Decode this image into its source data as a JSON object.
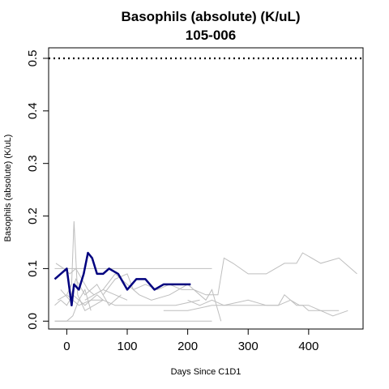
{
  "chart_data": {
    "type": "line",
    "title": "Basophils (absolute) (K/uL)",
    "subtitle": "105-006",
    "xlabel": "Days Since C1D1",
    "ylabel": "Basophils (absolute) (K/uL)",
    "xlim": [
      -30,
      490
    ],
    "ylim": [
      -0.015,
      0.52
    ],
    "xticks": [
      0,
      100,
      200,
      300,
      400
    ],
    "yticks": [
      0.0,
      0.1,
      0.2,
      0.3,
      0.4,
      0.5
    ],
    "xtick_labels": [
      "0",
      "100",
      "200",
      "300",
      "400"
    ],
    "ytick_labels": [
      "0.0",
      "0.1",
      "0.2",
      "0.3",
      "0.4",
      "0.5"
    ],
    "reference_line": {
      "y": 0.5,
      "style": "dotted"
    },
    "colors": {
      "highlight": "#00007f",
      "background_series": "#bebebe",
      "reference": "#000000"
    },
    "highlight_series": {
      "name": "105-006",
      "x": [
        -20,
        0,
        8,
        12,
        20,
        28,
        35,
        42,
        50,
        60,
        70,
        85,
        100,
        115,
        130,
        145,
        160,
        180,
        205
      ],
      "y": [
        0.08,
        0.1,
        0.03,
        0.07,
        0.06,
        0.09,
        0.13,
        0.12,
        0.09,
        0.09,
        0.1,
        0.09,
        0.06,
        0.08,
        0.08,
        0.06,
        0.07,
        0.07,
        0.07
      ]
    },
    "background_series": [
      {
        "x": [
          -20,
          -10,
          0,
          10,
          20,
          30,
          40,
          50,
          60
        ],
        "y": [
          0.03,
          0.04,
          0.03,
          0.05,
          0.04,
          0.03,
          0.04,
          0.05,
          0.04
        ]
      },
      {
        "x": [
          -18,
          -5,
          5,
          15,
          25,
          35,
          45,
          60,
          80,
          100
        ],
        "y": [
          0.11,
          0.1,
          0.09,
          0.1,
          0.08,
          0.06,
          0.05,
          0.06,
          0.05,
          0.04
        ]
      },
      {
        "x": [
          -15,
          0,
          8,
          12,
          18,
          30,
          45,
          60
        ],
        "y": [
          0.04,
          0.05,
          0.07,
          0.19,
          0.05,
          0.02,
          0.03,
          0.04
        ]
      },
      {
        "x": [
          -20,
          0,
          10,
          20,
          30,
          40
        ],
        "y": [
          0.0,
          0.0,
          0.01,
          0.04,
          0.06,
          0.02
        ]
      },
      {
        "x": [
          -10,
          5,
          15,
          30,
          50,
          70,
          90
        ],
        "y": [
          0.06,
          0.04,
          0.08,
          0.05,
          0.07,
          0.03,
          0.05
        ]
      },
      {
        "x": [
          -20,
          240
        ],
        "y": [
          0.0,
          0.0
        ]
      },
      {
        "x": [
          -20,
          240
        ],
        "y": [
          0.1,
          0.1
        ]
      },
      {
        "x": [
          0,
          20,
          40,
          60,
          80,
          100,
          140,
          180,
          220
        ],
        "y": [
          0.05,
          0.03,
          0.04,
          0.04,
          0.03,
          0.03,
          0.03,
          0.03,
          0.04
        ]
      },
      {
        "x": [
          30,
          60,
          80,
          100,
          120,
          140,
          170,
          200,
          230,
          240,
          255
        ],
        "y": [
          0.04,
          0.06,
          0.09,
          0.07,
          0.05,
          0.04,
          0.05,
          0.07,
          0.04,
          0.06,
          0.0
        ]
      },
      {
        "x": [
          60,
          80,
          100,
          110,
          130,
          150,
          170,
          190,
          210,
          230,
          250,
          260,
          275,
          300,
          330,
          360,
          380,
          390,
          420,
          450,
          470,
          480
        ],
        "y": [
          0.05,
          0.08,
          0.09,
          0.06,
          0.07,
          0.06,
          0.07,
          0.06,
          0.06,
          0.05,
          0.05,
          0.12,
          0.11,
          0.09,
          0.09,
          0.11,
          0.11,
          0.13,
          0.11,
          0.12,
          0.1,
          0.09
        ]
      },
      {
        "x": [
          200,
          220,
          240,
          260,
          280,
          300,
          330,
          350,
          370,
          385,
          400,
          420,
          440,
          465
        ],
        "y": [
          0.04,
          0.03,
          0.04,
          0.03,
          0.03,
          0.03,
          0.03,
          0.03,
          0.04,
          0.03,
          0.03,
          0.02,
          0.01,
          0.02
        ]
      },
      {
        "x": [
          160,
          200,
          240,
          260,
          300,
          330,
          350,
          360,
          380,
          390,
          400,
          420,
          450
        ],
        "y": [
          0.02,
          0.02,
          0.03,
          0.03,
          0.04,
          0.03,
          0.03,
          0.05,
          0.03,
          0.03,
          0.02,
          0.02,
          0.02
        ]
      }
    ]
  }
}
